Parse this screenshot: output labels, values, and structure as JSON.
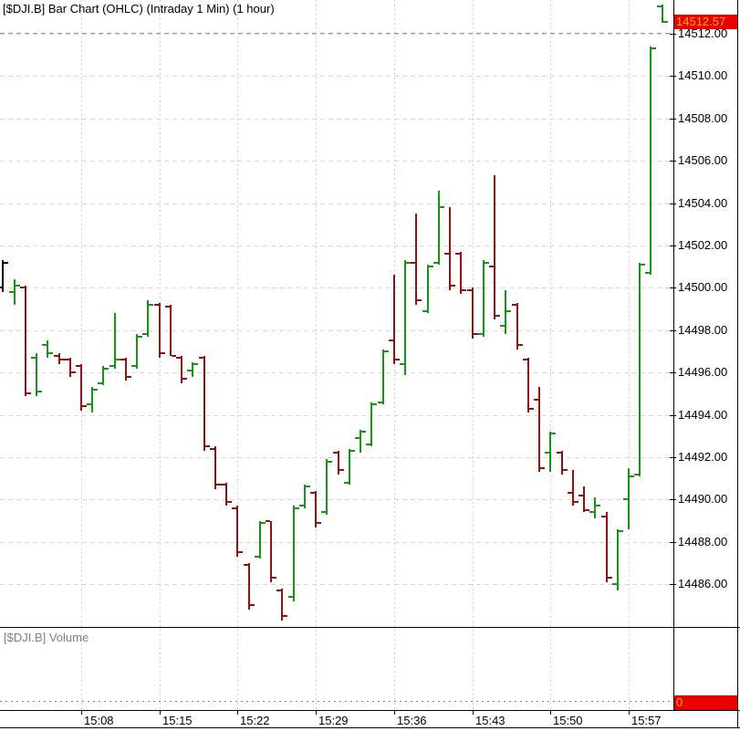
{
  "title": "[$DJI.B] Bar Chart (OHLC) (Intraday 1 Min) (1 hour)",
  "price_axis": {
    "last_price_label": "14512.57",
    "labels": [
      "14512.00",
      "14510.00",
      "14508.00",
      "14506.00",
      "14504.00",
      "14502.00",
      "14500.00",
      "14498.00",
      "14496.00",
      "14494.00",
      "14492.00",
      "14490.00",
      "14488.00",
      "14486.00"
    ]
  },
  "time_axis": {
    "labels": [
      "15:08",
      "15:15",
      "15:22",
      "15:29",
      "15:36",
      "15:43",
      "15:50",
      "15:57"
    ]
  },
  "volume_panel": {
    "label": "[$DJI.B] Volume",
    "last_value_label": "0"
  },
  "colors": {
    "up": "#159415",
    "down": "#8e1414",
    "first": "#000000",
    "badge_bg": "#e60000",
    "badge_text": "#ffb400",
    "grid_h": "#d7d7d7",
    "grid_v": "#cfcfcf",
    "last_price_line": "#9a9a9a",
    "axis": "#000000",
    "volume_label": "#808080"
  },
  "chart_data": {
    "type": "bar",
    "subtype": "ohlc",
    "title": "[$DJI.B] Bar Chart (OHLC) (Intraday 1 Min) (1 hour)",
    "symbol": "$DJI.B",
    "interval": "Intraday 1 Min",
    "range": "1 hour",
    "last_price": 14512.57,
    "volume_last": 0,
    "grid": true,
    "legend_position": "none",
    "ylim": [
      14483.8,
      14513.6
    ],
    "price_ticks": [
      14512,
      14510,
      14508,
      14506,
      14504,
      14502,
      14500,
      14498,
      14496,
      14494,
      14492,
      14490,
      14488,
      14486
    ],
    "time_ticks": [
      "15:08",
      "15:15",
      "15:22",
      "15:29",
      "15:36",
      "15:43",
      "15:50",
      "15:57"
    ],
    "bars": [
      {
        "t": "15:01",
        "o": 14500.0,
        "h": 14501.3,
        "l": 14499.8,
        "c": 14501.2,
        "d": "first"
      },
      {
        "t": "15:02",
        "o": 14499.8,
        "h": 14500.4,
        "l": 14499.2,
        "c": 14500.1,
        "d": "up"
      },
      {
        "t": "15:03",
        "o": 14500.0,
        "h": 14500.1,
        "l": 14494.9,
        "c": 14495.0,
        "d": "down"
      },
      {
        "t": "15:04",
        "o": 14496.7,
        "h": 14496.9,
        "l": 14494.9,
        "c": 14495.1,
        "d": "up"
      },
      {
        "t": "15:05",
        "o": 14497.3,
        "h": 14497.5,
        "l": 14496.7,
        "c": 14496.9,
        "d": "up"
      },
      {
        "t": "15:06",
        "o": 14496.8,
        "h": 14496.9,
        "l": 14496.4,
        "c": 14496.6,
        "d": "down"
      },
      {
        "t": "15:07",
        "o": 14496.6,
        "h": 14496.7,
        "l": 14495.8,
        "c": 14496.0,
        "d": "down"
      },
      {
        "t": "15:08",
        "o": 14496.3,
        "h": 14496.4,
        "l": 14494.2,
        "c": 14494.4,
        "d": "down"
      },
      {
        "t": "15:09",
        "o": 14494.5,
        "h": 14495.3,
        "l": 14494.1,
        "c": 14495.2,
        "d": "up"
      },
      {
        "t": "15:10",
        "o": 14495.5,
        "h": 14496.3,
        "l": 14495.4,
        "c": 14496.2,
        "d": "up"
      },
      {
        "t": "15:11",
        "o": 14496.3,
        "h": 14498.8,
        "l": 14496.2,
        "c": 14496.6,
        "d": "up"
      },
      {
        "t": "15:12",
        "o": 14496.6,
        "h": 14496.7,
        "l": 14495.6,
        "c": 14495.8,
        "d": "down"
      },
      {
        "t": "15:13",
        "o": 14496.3,
        "h": 14497.8,
        "l": 14496.2,
        "c": 14497.7,
        "d": "up"
      },
      {
        "t": "15:14",
        "o": 14497.8,
        "h": 14499.4,
        "l": 14497.7,
        "c": 14499.2,
        "d": "up"
      },
      {
        "t": "15:15",
        "o": 14499.2,
        "h": 14499.3,
        "l": 14496.7,
        "c": 14496.9,
        "d": "down"
      },
      {
        "t": "15:16",
        "o": 14499.1,
        "h": 14499.2,
        "l": 14496.8,
        "c": 14496.8,
        "d": "down"
      },
      {
        "t": "15:17",
        "o": 14496.7,
        "h": 14496.8,
        "l": 14495.5,
        "c": 14495.7,
        "d": "down"
      },
      {
        "t": "15:18",
        "o": 14496.1,
        "h": 14496.5,
        "l": 14495.8,
        "c": 14496.4,
        "d": "up"
      },
      {
        "t": "15:19",
        "o": 14496.7,
        "h": 14496.8,
        "l": 14492.3,
        "c": 14492.5,
        "d": "down"
      },
      {
        "t": "15:20",
        "o": 14492.4,
        "h": 14492.5,
        "l": 14490.5,
        "c": 14490.7,
        "d": "down"
      },
      {
        "t": "15:21",
        "o": 14490.7,
        "h": 14490.8,
        "l": 14489.7,
        "c": 14489.9,
        "d": "down"
      },
      {
        "t": "15:22",
        "o": 14489.6,
        "h": 14489.7,
        "l": 14487.3,
        "c": 14487.5,
        "d": "down"
      },
      {
        "t": "15:23",
        "o": 14486.9,
        "h": 14487.0,
        "l": 14484.8,
        "c": 14485.0,
        "d": "down"
      },
      {
        "t": "15:24",
        "o": 14487.3,
        "h": 14489.0,
        "l": 14487.2,
        "c": 14488.9,
        "d": "up"
      },
      {
        "t": "15:25",
        "o": 14489.0,
        "h": 14489.0,
        "l": 14486.1,
        "c": 14486.3,
        "d": "down"
      },
      {
        "t": "15:26",
        "o": 14485.7,
        "h": 14485.8,
        "l": 14484.3,
        "c": 14484.5,
        "d": "down"
      },
      {
        "t": "15:27",
        "o": 14485.4,
        "h": 14489.7,
        "l": 14485.2,
        "c": 14489.6,
        "d": "up"
      },
      {
        "t": "15:28",
        "o": 14489.7,
        "h": 14490.7,
        "l": 14489.6,
        "c": 14490.6,
        "d": "up"
      },
      {
        "t": "15:29",
        "o": 14490.3,
        "h": 14490.4,
        "l": 14488.7,
        "c": 14488.9,
        "d": "down"
      },
      {
        "t": "15:30",
        "o": 14489.4,
        "h": 14491.9,
        "l": 14489.3,
        "c": 14491.8,
        "d": "up"
      },
      {
        "t": "15:31",
        "o": 14492.2,
        "h": 14492.3,
        "l": 14491.2,
        "c": 14491.4,
        "d": "down"
      },
      {
        "t": "15:32",
        "o": 14490.8,
        "h": 14492.4,
        "l": 14490.7,
        "c": 14492.3,
        "d": "up"
      },
      {
        "t": "15:33",
        "o": 14492.9,
        "h": 14493.3,
        "l": 14492.2,
        "c": 14493.2,
        "d": "up"
      },
      {
        "t": "15:34",
        "o": 14492.6,
        "h": 14494.6,
        "l": 14492.5,
        "c": 14494.5,
        "d": "up"
      },
      {
        "t": "15:35",
        "o": 14494.6,
        "h": 14497.1,
        "l": 14494.5,
        "c": 14497.0,
        "d": "up"
      },
      {
        "t": "15:36",
        "o": 14497.5,
        "h": 14500.6,
        "l": 14496.4,
        "c": 14496.6,
        "d": "down"
      },
      {
        "t": "15:37",
        "o": 14496.4,
        "h": 14501.3,
        "l": 14495.9,
        "c": 14501.2,
        "d": "up"
      },
      {
        "t": "15:38",
        "o": 14501.2,
        "h": 14503.5,
        "l": 14499.2,
        "c": 14499.4,
        "d": "down"
      },
      {
        "t": "15:39",
        "o": 14498.9,
        "h": 14501.1,
        "l": 14498.8,
        "c": 14501.0,
        "d": "up"
      },
      {
        "t": "15:40",
        "o": 14501.2,
        "h": 14504.6,
        "l": 14501.1,
        "c": 14503.8,
        "d": "up"
      },
      {
        "t": "15:41",
        "o": 14501.6,
        "h": 14503.8,
        "l": 14499.9,
        "c": 14500.1,
        "d": "down"
      },
      {
        "t": "15:42",
        "o": 14501.6,
        "h": 14501.7,
        "l": 14499.7,
        "c": 14499.9,
        "d": "down"
      },
      {
        "t": "15:43",
        "o": 14499.9,
        "h": 14500.0,
        "l": 14497.6,
        "c": 14497.8,
        "d": "down"
      },
      {
        "t": "15:44",
        "o": 14497.8,
        "h": 14501.3,
        "l": 14497.7,
        "c": 14501.2,
        "d": "up"
      },
      {
        "t": "15:45",
        "o": 14501.0,
        "h": 14505.3,
        "l": 14498.5,
        "c": 14498.7,
        "d": "down"
      },
      {
        "t": "15:46",
        "o": 14498.2,
        "h": 14499.9,
        "l": 14497.8,
        "c": 14498.9,
        "d": "up"
      },
      {
        "t": "15:47",
        "o": 14499.2,
        "h": 14499.3,
        "l": 14497.1,
        "c": 14497.3,
        "d": "down"
      },
      {
        "t": "15:48",
        "o": 14496.6,
        "h": 14496.7,
        "l": 14494.1,
        "c": 14494.3,
        "d": "down"
      },
      {
        "t": "15:49",
        "o": 14494.7,
        "h": 14495.3,
        "l": 14491.3,
        "c": 14491.5,
        "d": "down"
      },
      {
        "t": "15:50",
        "o": 14492.2,
        "h": 14493.2,
        "l": 14491.3,
        "c": 14493.1,
        "d": "up"
      },
      {
        "t": "15:51",
        "o": 14492.2,
        "h": 14492.3,
        "l": 14491.2,
        "c": 14491.4,
        "d": "down"
      },
      {
        "t": "15:52",
        "o": 14490.3,
        "h": 14491.4,
        "l": 14489.7,
        "c": 14489.9,
        "d": "down"
      },
      {
        "t": "15:53",
        "o": 14490.2,
        "h": 14490.6,
        "l": 14489.4,
        "c": 14489.5,
        "d": "down"
      },
      {
        "t": "15:54",
        "o": 14489.4,
        "h": 14490.1,
        "l": 14489.1,
        "c": 14489.7,
        "d": "up"
      },
      {
        "t": "15:55",
        "o": 14489.2,
        "h": 14489.4,
        "l": 14486.1,
        "c": 14486.3,
        "d": "down"
      },
      {
        "t": "15:56",
        "o": 14486.0,
        "h": 14488.6,
        "l": 14485.7,
        "c": 14488.5,
        "d": "up"
      },
      {
        "t": "15:57",
        "o": 14490.0,
        "h": 14491.5,
        "l": 14488.6,
        "c": 14491.1,
        "d": "up"
      },
      {
        "t": "15:58",
        "o": 14491.2,
        "h": 14501.2,
        "l": 14491.1,
        "c": 14501.1,
        "d": "up"
      },
      {
        "t": "15:59",
        "o": 14500.7,
        "h": 14511.4,
        "l": 14500.6,
        "c": 14511.3,
        "d": "up"
      },
      {
        "t": "16:00",
        "o": 14513.3,
        "h": 14513.4,
        "l": 14512.5,
        "c": 14512.57,
        "d": "up"
      }
    ]
  }
}
